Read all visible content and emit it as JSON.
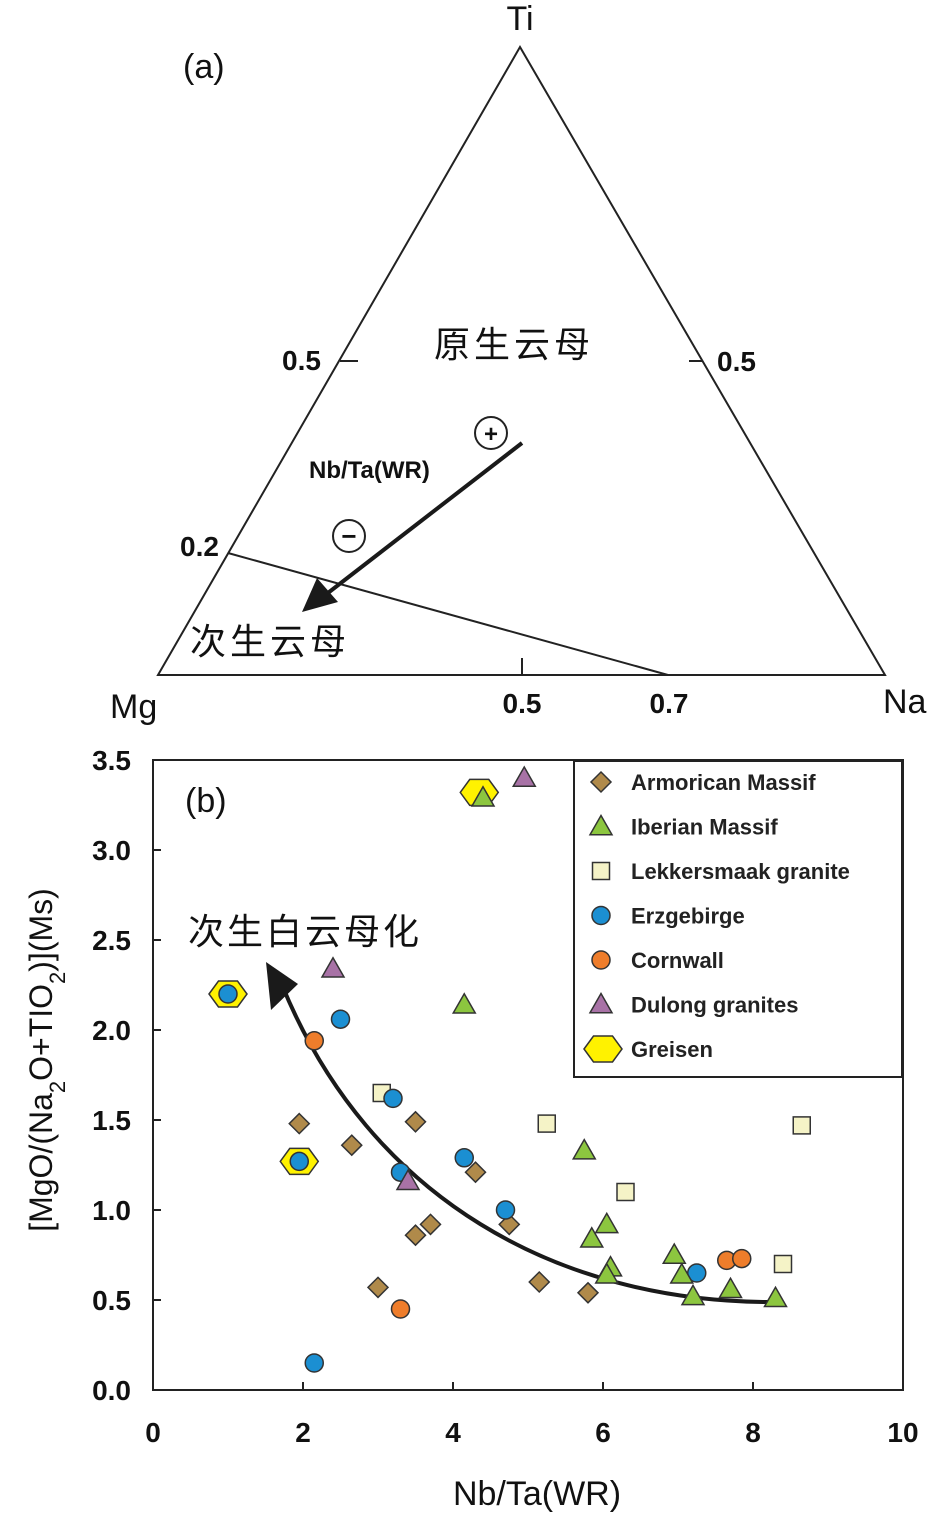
{
  "chart_data": [
    {
      "type": "ternary",
      "panel_label": "(a)",
      "vertices": {
        "top": "Ti",
        "left": "Mg",
        "right": "Na"
      },
      "tick_labels": {
        "left_edge": [
          "0.5",
          "0.2"
        ],
        "right_edge": [
          "0.5"
        ],
        "bottom_edge": [
          "0.5",
          "0.7"
        ]
      },
      "field_labels": {
        "primary": "原生云母",
        "secondary": "次生云母"
      },
      "boundary_line": {
        "from": "0.2 on Mg–Ti edge",
        "to": "0.7 on Mg–Na edge"
      },
      "arrow": {
        "label": "Nb/Ta(WR)",
        "start_symbol": "+",
        "end_symbol": "−",
        "direction": "toward 次生云母"
      }
    },
    {
      "type": "scatter",
      "panel_label": "(b)",
      "xlabel": "Nb/Ta(WR)",
      "ylabel": "[MgO/(Na2O+TIO2)](Ms)",
      "xlim": [
        0,
        10
      ],
      "ylim": [
        0,
        3.5
      ],
      "xticks": [
        "0",
        "2",
        "4",
        "6",
        "8",
        "10"
      ],
      "yticks": [
        "0.0",
        "0.5",
        "1.0",
        "1.5",
        "2.0",
        "2.5",
        "3.0",
        "3.5"
      ],
      "annotation": "次生白云母化",
      "legend_position": "top-right",
      "series": [
        {
          "name": "Armorican Massif",
          "marker": "diamond",
          "color": "#B08A4A",
          "points": [
            [
              1.95,
              1.48
            ],
            [
              2.65,
              1.36
            ],
            [
              3.5,
              1.49
            ],
            [
              4.3,
              1.21
            ],
            [
              3.5,
              0.86
            ],
            [
              3.7,
              0.92
            ],
            [
              3.0,
              0.57
            ],
            [
              4.75,
              0.92
            ],
            [
              5.15,
              0.6
            ],
            [
              5.8,
              0.54
            ]
          ]
        },
        {
          "name": "Iberian Massif",
          "marker": "triangle",
          "color": "#8CC63F",
          "points": [
            [
              4.4,
              3.29
            ],
            [
              4.15,
              2.14
            ],
            [
              5.75,
              1.33
            ],
            [
              5.85,
              0.84
            ],
            [
              6.05,
              0.92
            ],
            [
              6.1,
              0.68
            ],
            [
              6.05,
              0.64
            ],
            [
              6.95,
              0.75
            ],
            [
              7.05,
              0.64
            ],
            [
              7.2,
              0.52
            ],
            [
              7.7,
              0.56
            ],
            [
              8.3,
              0.51
            ]
          ]
        },
        {
          "name": "Lekkersmaak granite",
          "marker": "square",
          "color": "#F5F3C7",
          "points": [
            [
              3.05,
              1.65
            ],
            [
              5.25,
              1.48
            ],
            [
              6.3,
              1.1
            ],
            [
              8.4,
              0.7
            ],
            [
              8.65,
              1.47
            ]
          ]
        },
        {
          "name": "Erzgebirge",
          "marker": "circle",
          "color": "#1B8FD2",
          "points": [
            [
              1.0,
              2.2
            ],
            [
              2.5,
              2.06
            ],
            [
              3.2,
              1.62
            ],
            [
              3.3,
              1.21
            ],
            [
              4.15,
              1.29
            ],
            [
              4.7,
              1.0
            ],
            [
              1.95,
              1.27
            ],
            [
              2.15,
              0.15
            ],
            [
              7.25,
              0.65
            ]
          ]
        },
        {
          "name": "Cornwall",
          "marker": "circle",
          "color": "#EE7D2B",
          "points": [
            [
              2.15,
              1.94
            ],
            [
              3.3,
              0.45
            ],
            [
              7.65,
              0.72
            ],
            [
              7.85,
              0.73
            ]
          ]
        },
        {
          "name": "Dulong granites",
          "marker": "triangle",
          "color": "#A872A6",
          "points": [
            [
              4.95,
              3.4
            ],
            [
              2.4,
              2.34
            ],
            [
              3.4,
              1.16
            ]
          ]
        },
        {
          "name": "Greisen",
          "marker": "hexagon",
          "color": "#FFF200",
          "points": [
            [
              4.35,
              3.32
            ],
            [
              1.0,
              2.2
            ],
            [
              1.95,
              1.27
            ]
          ]
        }
      ]
    }
  ]
}
